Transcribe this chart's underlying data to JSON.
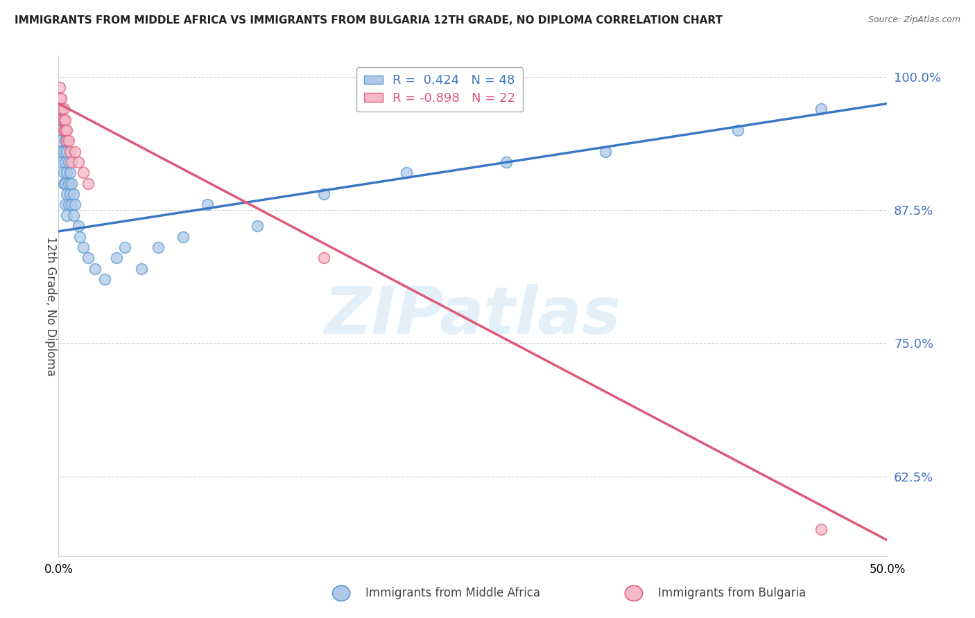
{
  "title": "IMMIGRANTS FROM MIDDLE AFRICA VS IMMIGRANTS FROM BULGARIA 12TH GRADE, NO DIPLOMA CORRELATION CHART",
  "source": "Source: ZipAtlas.com",
  "ylabel_left": "12th Grade, No Diploma",
  "legend_label_blue": "Immigrants from Middle Africa",
  "legend_label_pink": "Immigrants from Bulgaria",
  "R_blue": 0.424,
  "N_blue": 48,
  "R_pink": -0.898,
  "N_pink": 22,
  "xlim": [
    0.0,
    0.5
  ],
  "ylim": [
    0.55,
    1.02
  ],
  "yticks": [
    0.625,
    0.75,
    0.875,
    1.0
  ],
  "ytick_labels": [
    "62.5%",
    "75.0%",
    "87.5%",
    "100.0%"
  ],
  "xticks": [
    0.0,
    0.1,
    0.2,
    0.3,
    0.4,
    0.5
  ],
  "xtick_labels": [
    "0.0%",
    "",
    "",
    "",
    "",
    "50.0%"
  ],
  "color_blue_fill": "#aec8e8",
  "color_pink_fill": "#f4b8c8",
  "color_blue_edge": "#5b9bd5",
  "color_pink_edge": "#e06080",
  "color_blue_line": "#3b78c4",
  "color_pink_line": "#e05878",
  "watermark": "ZIPatlas",
  "background_color": "#ffffff",
  "blue_dots_x": [
    0.0005,
    0.001,
    0.001,
    0.0015,
    0.002,
    0.002,
    0.002,
    0.003,
    0.003,
    0.003,
    0.003,
    0.004,
    0.004,
    0.004,
    0.004,
    0.005,
    0.005,
    0.005,
    0.005,
    0.006,
    0.006,
    0.006,
    0.007,
    0.007,
    0.008,
    0.008,
    0.009,
    0.009,
    0.01,
    0.012,
    0.013,
    0.015,
    0.018,
    0.022,
    0.028,
    0.035,
    0.04,
    0.05,
    0.06,
    0.075,
    0.09,
    0.12,
    0.16,
    0.21,
    0.27,
    0.33,
    0.41,
    0.46
  ],
  "blue_dots_y": [
    0.96,
    0.95,
    0.94,
    0.93,
    0.97,
    0.96,
    0.92,
    0.95,
    0.93,
    0.91,
    0.9,
    0.94,
    0.92,
    0.9,
    0.88,
    0.93,
    0.91,
    0.89,
    0.87,
    0.92,
    0.9,
    0.88,
    0.91,
    0.89,
    0.9,
    0.88,
    0.89,
    0.87,
    0.88,
    0.86,
    0.85,
    0.84,
    0.83,
    0.82,
    0.81,
    0.83,
    0.84,
    0.82,
    0.84,
    0.85,
    0.88,
    0.86,
    0.89,
    0.91,
    0.92,
    0.93,
    0.95,
    0.97
  ],
  "pink_dots_x": [
    0.0005,
    0.001,
    0.001,
    0.0015,
    0.002,
    0.002,
    0.003,
    0.003,
    0.003,
    0.004,
    0.004,
    0.005,
    0.005,
    0.006,
    0.007,
    0.008,
    0.01,
    0.012,
    0.015,
    0.018,
    0.16,
    0.46
  ],
  "pink_dots_y": [
    0.99,
    0.98,
    0.97,
    0.98,
    0.97,
    0.96,
    0.97,
    0.96,
    0.95,
    0.96,
    0.95,
    0.95,
    0.94,
    0.94,
    0.93,
    0.92,
    0.93,
    0.92,
    0.91,
    0.9,
    0.83,
    0.575
  ],
  "blue_line_x0": 0.0,
  "blue_line_y0": 0.855,
  "blue_line_x1": 0.5,
  "blue_line_y1": 0.975,
  "pink_line_x0": 0.0,
  "pink_line_y0": 0.975,
  "pink_line_x1": 0.5,
  "pink_line_y1": 0.565
}
